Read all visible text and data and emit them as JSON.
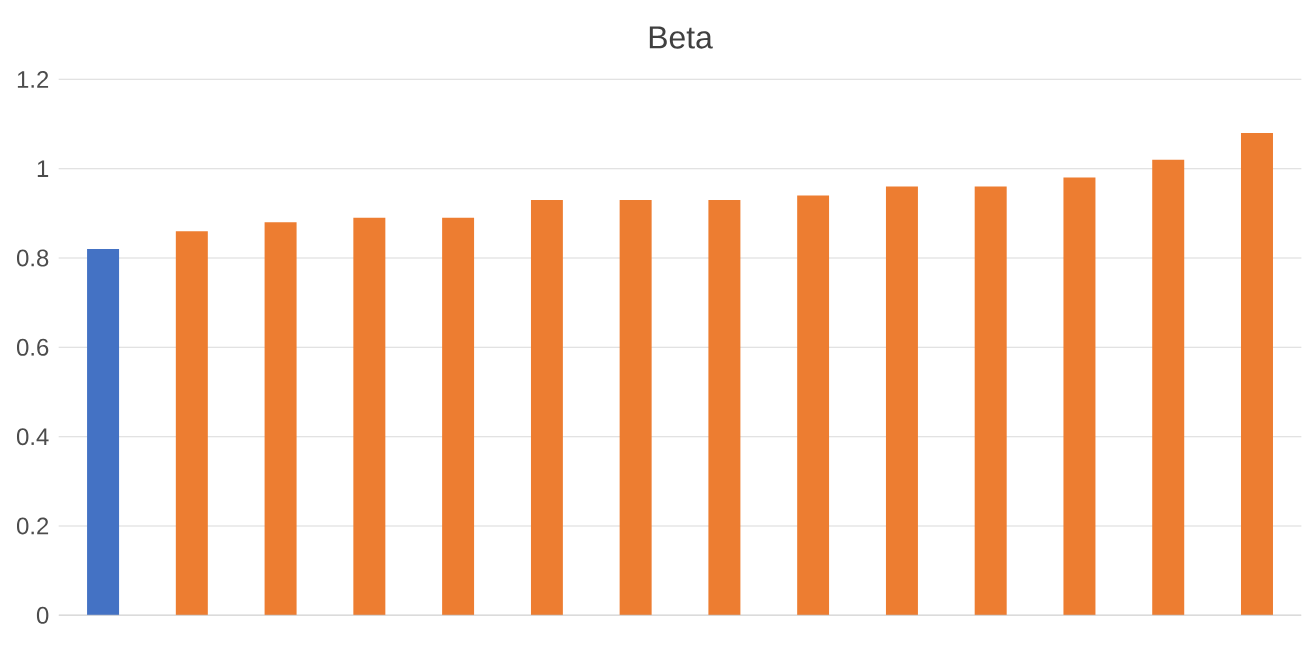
{
  "chart_data": {
    "type": "bar",
    "title": "Beta",
    "categories": [
      null,
      null,
      null,
      null,
      null,
      null,
      null,
      null,
      null,
      null,
      null,
      null,
      null,
      null
    ],
    "values": [
      0.82,
      0.86,
      0.88,
      0.89,
      0.89,
      0.93,
      0.93,
      0.93,
      0.94,
      0.96,
      0.96,
      0.98,
      1.02,
      1.08
    ],
    "colors": [
      "#4472c4",
      "#ed7d31",
      "#ed7d31",
      "#ed7d31",
      "#ed7d31",
      "#ed7d31",
      "#ed7d31",
      "#ed7d31",
      "#ed7d31",
      "#ed7d31",
      "#ed7d31",
      "#ed7d31",
      "#ed7d31",
      "#ed7d31"
    ],
    "ylim": [
      0,
      1.2
    ],
    "yticks": [
      0,
      0.2,
      0.4,
      0.6,
      0.8,
      1,
      1.2
    ],
    "grid": "y"
  }
}
